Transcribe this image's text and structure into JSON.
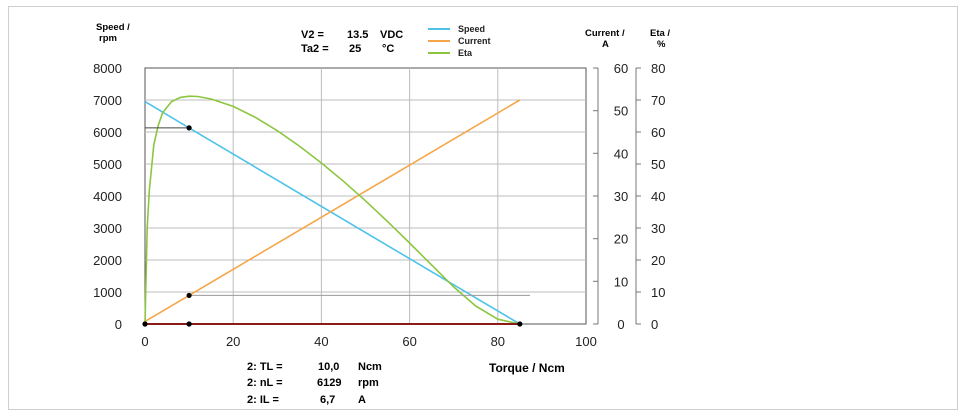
{
  "chart_data": {
    "type": "line",
    "xlabel": "Torque / Ncm",
    "x_ticks": [
      "0",
      "20",
      "40",
      "60",
      "80",
      "100"
    ],
    "xlim": [
      0,
      100
    ],
    "y_axes": {
      "speed": {
        "label_line1": "Speed  /",
        "label_line2": "rpm",
        "ylim": [
          0,
          8000
        ],
        "ticks": [
          "0",
          "1000",
          "2000",
          "3000",
          "4000",
          "5000",
          "6000",
          "7000",
          "8000"
        ]
      },
      "current": {
        "label_line1": "Current /",
        "label_line2": "A",
        "ylim": [
          0,
          60
        ],
        "ticks": [
          "0",
          "10",
          "20",
          "30",
          "40",
          "50",
          "60"
        ]
      },
      "eta": {
        "label_line1": "Eta /",
        "label_line2": "%",
        "ylim": [
          0,
          80
        ],
        "ticks": [
          "0",
          "10",
          "20",
          "30",
          "40",
          "50",
          "60",
          "70",
          "80"
        ]
      }
    },
    "conditions": {
      "v2_label": "V2 =",
      "v2_value": "13.5",
      "v2_unit": "VDC",
      "ta2_label": "Ta2 =",
      "ta2_value": "25",
      "ta2_unit": "°C"
    },
    "series": [
      {
        "name": "Speed",
        "axis": "speed",
        "color": "#4dc3ea",
        "x": [
          0,
          10,
          85
        ],
        "y": [
          6950,
          6129,
          0
        ]
      },
      {
        "name": "Current",
        "axis": "current",
        "color": "#f5a64a",
        "x": [
          0,
          10,
          85
        ],
        "y": [
          0.6,
          6.7,
          52.5
        ]
      },
      {
        "name": "Eta",
        "axis": "eta",
        "color": "#8cc63f",
        "x": [
          0,
          0.5,
          1,
          2,
          3,
          4,
          6,
          8,
          10,
          12,
          15,
          20,
          25,
          30,
          35,
          40,
          45,
          50,
          55,
          60,
          65,
          70,
          75,
          80,
          85
        ],
        "y": [
          0,
          30,
          42,
          56,
          62,
          66,
          69.5,
          70.8,
          71.2,
          71.1,
          70.3,
          68,
          64.6,
          60.4,
          55.6,
          50.3,
          44.6,
          38.5,
          32.0,
          25.3,
          18.4,
          11.6,
          5.6,
          1.5,
          0
        ]
      }
    ],
    "operating_point": {
      "x": 10,
      "tl_label": "2:  TL =",
      "tl_value": "10,0",
      "tl_unit": "Ncm",
      "nl_label": "2:  nL =",
      "nl_value": "6129",
      "nl_unit": "rpm",
      "il_label": "2:   IL =",
      "il_value": "6,7",
      "il_unit": "A"
    },
    "reference_line_color": "#8b1a1a",
    "grid": true,
    "legend_position": "top-center"
  }
}
